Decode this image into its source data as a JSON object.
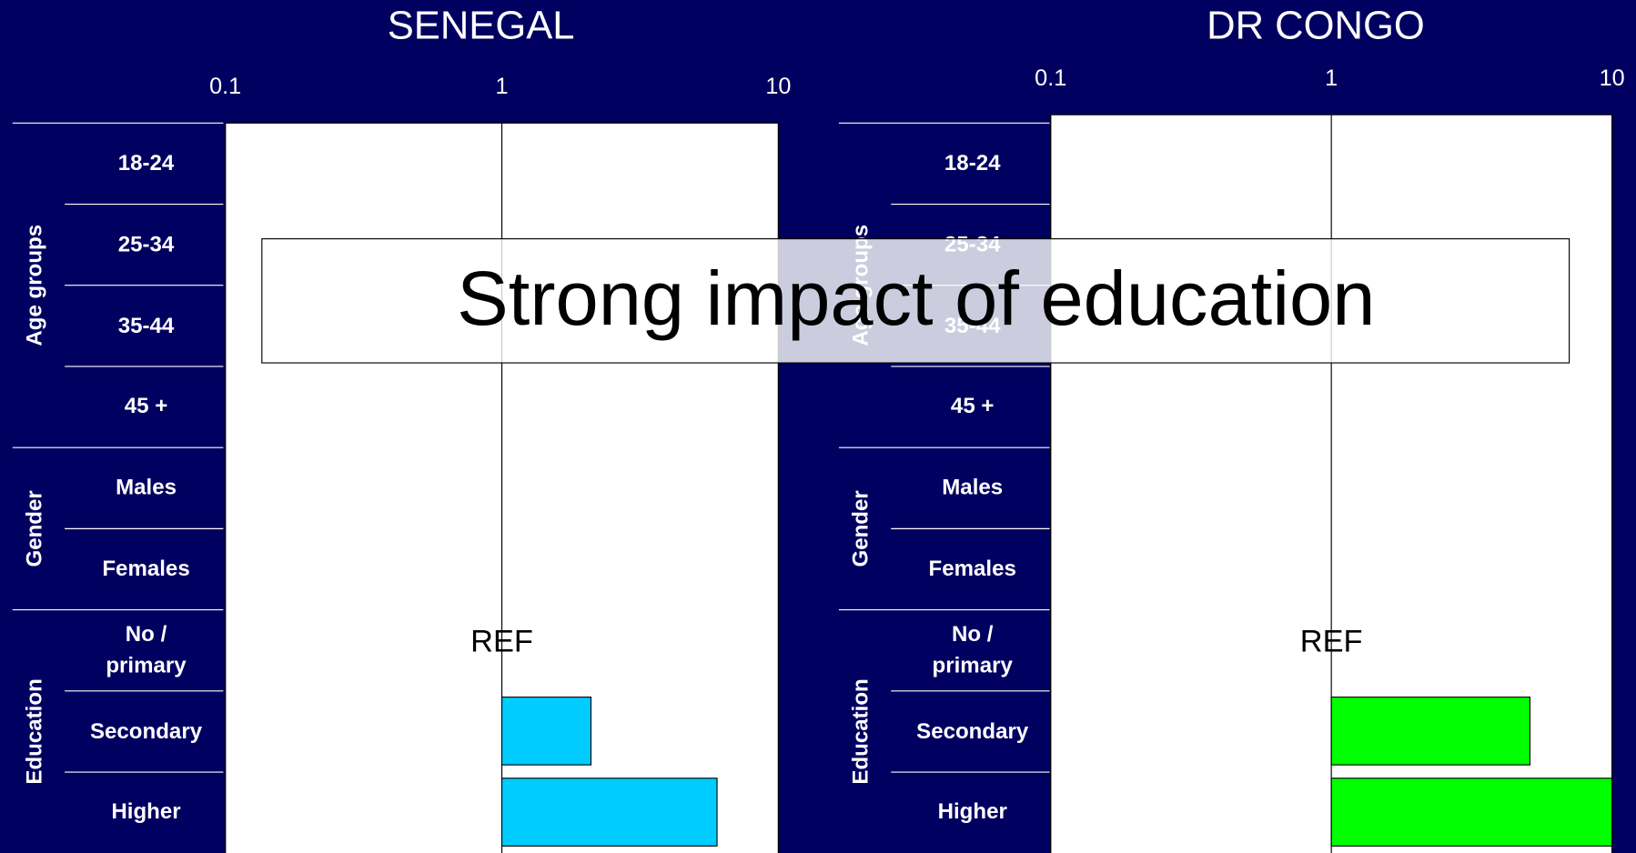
{
  "annotation": "Strong impact of education",
  "chart_data": [
    {
      "type": "bar",
      "orientation": "horizontal",
      "title": "SENEGAL",
      "xscale": "log",
      "xlim": [
        0.1,
        10
      ],
      "xticks": [
        0.1,
        1,
        10
      ],
      "base": 1,
      "color": "#00ccff",
      "grid": true,
      "groups": [
        {
          "name": "Age groups",
          "categories": [
            "18-24",
            "25-34",
            "35-44",
            "45 +"
          ],
          "values": [
            null,
            null,
            null,
            null
          ]
        },
        {
          "name": "Gender",
          "categories": [
            "Males",
            "Females"
          ],
          "values": [
            null,
            null
          ]
        },
        {
          "name": "Education",
          "categories": [
            "No / primary",
            "Secondary",
            "Higher"
          ],
          "values": [
            null,
            2.1,
            6
          ],
          "annotations": [
            "REF",
            null,
            null
          ]
        }
      ]
    },
    {
      "type": "bar",
      "orientation": "horizontal",
      "title": "DR CONGO",
      "xscale": "log",
      "xlim": [
        0.1,
        10
      ],
      "xticks": [
        0.1,
        1,
        10
      ],
      "base": 1,
      "color": "#00ff00",
      "grid": true,
      "groups": [
        {
          "name": "Age groups",
          "categories": [
            "18-24",
            "25-34",
            "35-44",
            "45 +"
          ],
          "values": [
            null,
            null,
            null,
            null
          ]
        },
        {
          "name": "Gender",
          "categories": [
            "Males",
            "Females"
          ],
          "values": [
            null,
            null
          ]
        },
        {
          "name": "Education",
          "categories": [
            "No / primary",
            "Secondary",
            "Higher"
          ],
          "values": [
            null,
            5.1,
            10
          ],
          "annotations": [
            "REF",
            null,
            null
          ]
        }
      ]
    }
  ]
}
